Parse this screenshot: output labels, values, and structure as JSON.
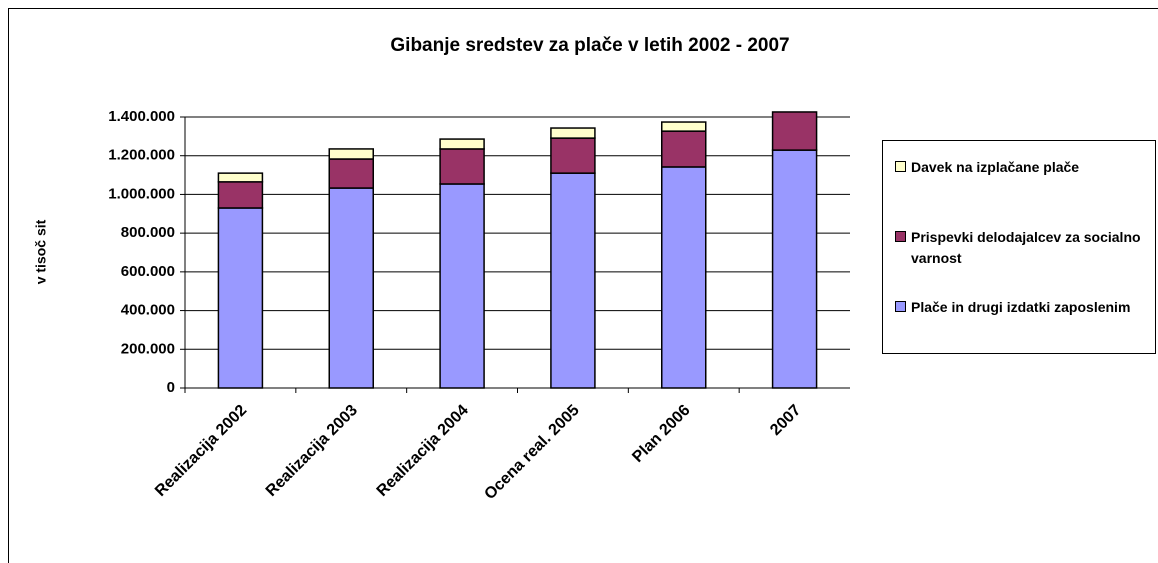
{
  "chart_data": {
    "type": "stacked_bar",
    "title": "Gibanje sredstev za plače v letih 2002 - 2007",
    "y_label": "v tisoč sit",
    "categories": [
      "Realizacija 2002",
      "Realizacija 2003",
      "Realizacija 2004",
      "Ocena real. 2005",
      "Plan 2006",
      "2007"
    ],
    "series": [
      {
        "name": "Plače in drugi izdatki zaposlenim",
        "color": "#9999ff",
        "values": [
          930000,
          1033000,
          1054000,
          1110000,
          1142000,
          1229000
        ]
      },
      {
        "name": "Prispevki delodajalcev za socialno varnost",
        "color": "#993366",
        "values": [
          135000,
          150000,
          181000,
          181000,
          185000,
          197000
        ]
      },
      {
        "name": "Davek na izplačane plače",
        "color": "#ffffcc",
        "values": [
          45000,
          52000,
          51000,
          52000,
          47000,
          0
        ]
      }
    ],
    "ylim": [
      0,
      1400000
    ],
    "yticks": [
      0,
      {
        "value": 200000,
        "label": "200.000"
      },
      {
        "value": 400000,
        "label": "400.000"
      },
      {
        "value": 600000,
        "label": "600.000"
      },
      {
        "value": 800000,
        "label": "800.000"
      },
      {
        "value": 1000000,
        "label": "1.000.000"
      },
      {
        "value": 1200000,
        "label": "1.200.000"
      },
      {
        "value": 1400000,
        "label": "1.400.000"
      }
    ],
    "grid": true
  }
}
